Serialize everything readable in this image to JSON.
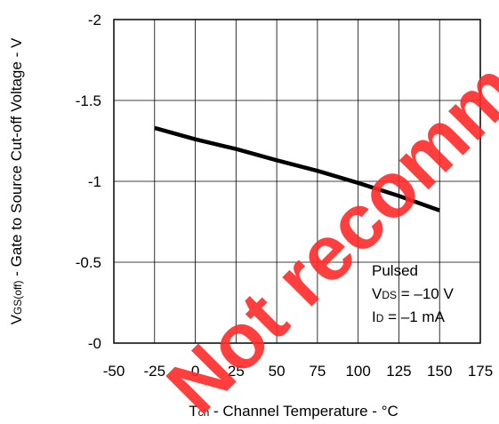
{
  "chart_data": {
    "type": "line",
    "x_label_parts": [
      "T",
      "ch",
      " - Channel Temperature - °C"
    ],
    "y_label_parts": [
      "V",
      "GS(off)",
      " - Gate to Source Cut-off Voltage - V"
    ],
    "xlim": [
      -50,
      175
    ],
    "ylim": [
      0,
      -2
    ],
    "x_ticks": [
      -50,
      -25,
      0,
      25,
      50,
      75,
      100,
      125,
      150,
      175
    ],
    "y_ticks": [
      -2,
      -1.5,
      -1,
      -0.5,
      0
    ],
    "y_tick_labels": [
      "-2",
      "-1.5",
      "-1",
      "-0.5",
      "-0"
    ],
    "grid": true,
    "series": [
      {
        "x": [
          -25,
          0,
          25,
          50,
          75,
          100,
          125,
          150
        ],
        "y": [
          -1.33,
          -1.26,
          -1.2,
          -1.13,
          -1.065,
          -0.99,
          -0.91,
          -0.82
        ]
      }
    ],
    "annotation": {
      "line1": "Pulsed",
      "line2_main": "V",
      "line2_sub": "DS",
      "line2_rest": " = –10 V",
      "line3_main": "I",
      "line3_sub": "D",
      "line3_rest": " = –1 mA"
    },
    "colors": {
      "line": "#000000",
      "grid": "#000000",
      "watermark": "#ff2a2a"
    }
  },
  "watermark": "Not recommended for new design"
}
